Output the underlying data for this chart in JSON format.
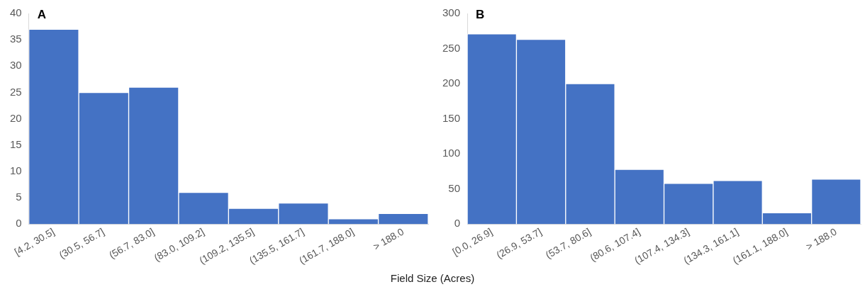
{
  "chart_data": [
    {
      "type": "bar",
      "title": "A",
      "xlabel": "Field Size (Acres)",
      "categories": [
        "[4.2, 30.5]",
        "(30.5, 56.7]",
        "(56.7, 83.0]",
        "(83.0, 109.2]",
        "(109.2, 135.5]",
        "(135.5, 161.7]",
        "(161.7, 188.0]",
        "> 188.0"
      ],
      "values": [
        37,
        25,
        26,
        6,
        3,
        4,
        1,
        2
      ],
      "color": "#4472c4",
      "ylim": [
        0,
        40
      ],
      "yticks": [
        0,
        5,
        10,
        15,
        20,
        25,
        30,
        35,
        40
      ],
      "grid": false
    },
    {
      "type": "bar",
      "title": "B",
      "categories": [
        "[0.0, 26.9]",
        "(26.9, 53.7]",
        "(53.7, 80.6]",
        "(80.6, 107.4]",
        "(107.4, 134.3]",
        "(134.3, 161.1]",
        "(161.1, 188.0]",
        "> 188.0"
      ],
      "values": [
        271,
        263,
        200,
        78,
        58,
        62,
        16,
        64
      ],
      "color": "#4472c4",
      "ylim": [
        0,
        300
      ],
      "yticks": [
        0,
        50,
        100,
        150,
        200,
        250,
        300
      ],
      "grid": false
    }
  ]
}
